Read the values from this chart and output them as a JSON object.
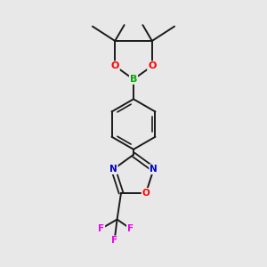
{
  "background_color": "#e8e8e8",
  "bond_color": "#1a1a1a",
  "atom_colors": {
    "B": "#00aa00",
    "O": "#ff0000",
    "N": "#0000cc",
    "F": "#ee00ee",
    "C": "#1a1a1a"
  },
  "figsize": [
    3.0,
    3.0
  ],
  "dpi": 100
}
